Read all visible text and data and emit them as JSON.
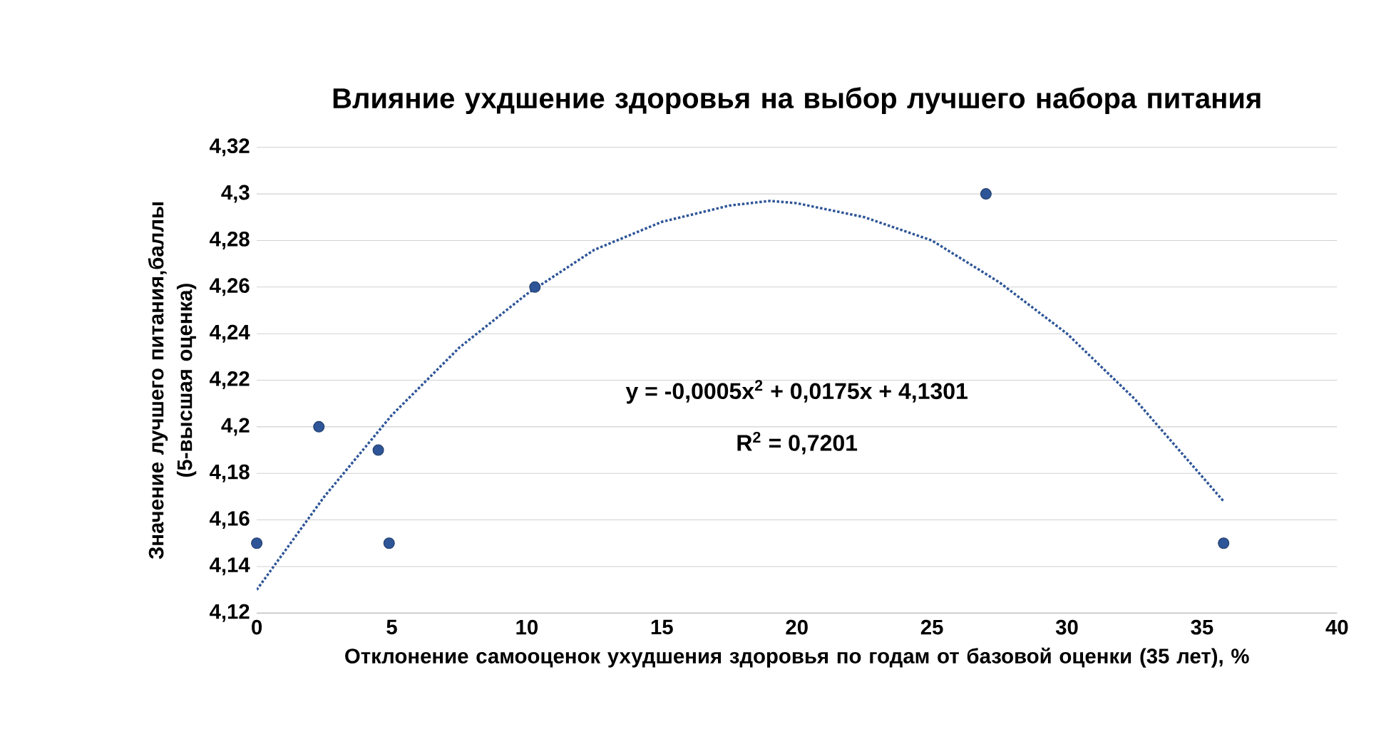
{
  "chart_data": {
    "type": "scatter",
    "title": "Влияние  ухдшение здоровья    на выбор  лучшего набора питания",
    "xlabel": "Отклонение самооценок ухудшения здоровья  по годам от  базовой оценки (35 лет), %",
    "ylabel": "Значение лучшего питания,баллы (5-высшая оценка)",
    "xlim": [
      0,
      40
    ],
    "xticks": [
      0,
      5,
      10,
      15,
      20,
      25,
      30,
      35,
      40
    ],
    "ylim": [
      4.12,
      4.32
    ],
    "yticks": [
      {
        "value": 4.12,
        "label": "4,12"
      },
      {
        "value": 4.14,
        "label": "4,14"
      },
      {
        "value": 4.16,
        "label": "4,16"
      },
      {
        "value": 4.18,
        "label": "4,18"
      },
      {
        "value": 4.2,
        "label": "4,2"
      },
      {
        "value": 4.22,
        "label": "4,22"
      },
      {
        "value": 4.24,
        "label": "4,24"
      },
      {
        "value": 4.26,
        "label": "4,26"
      },
      {
        "value": 4.28,
        "label": "4,28"
      },
      {
        "value": 4.3,
        "label": "4,3"
      },
      {
        "value": 4.32,
        "label": "4,32"
      }
    ],
    "grid": "y",
    "series": [
      {
        "color": "#2e5597",
        "marker": "circle",
        "x": [
          0,
          2.3,
          4.5,
          4.9,
          10.3,
          27,
          35.8
        ],
        "values": [
          4.15,
          4.2,
          4.19,
          4.15,
          4.26,
          4.3,
          4.15
        ]
      },
      {
        "type": "line",
        "color": "#2e5597",
        "marker": "none",
        "line_style": "dotted",
        "x": [
          0,
          2.5,
          5,
          7.5,
          10,
          12.5,
          15,
          17.5,
          19,
          20,
          22.5,
          25,
          27.5,
          30,
          32.5,
          35.8
        ],
        "values": [
          4.13,
          4.17,
          4.205,
          4.234,
          4.257,
          4.276,
          4.288,
          4.295,
          4.297,
          4.296,
          4.29,
          4.28,
          4.262,
          4.24,
          4.212,
          4.168
        ]
      }
    ],
    "annotations": [
      "y = -0,0005x$^{2}$ + 0,0175x + 4,1301",
      "R$^{2}$ = 0,7201"
    ]
  }
}
